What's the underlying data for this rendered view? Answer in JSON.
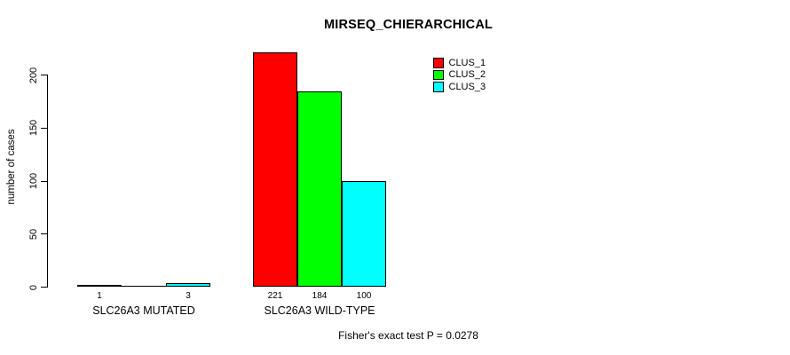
{
  "header": {
    "title": "MIRSEQ_CHIERARCHICAL"
  },
  "footer": {
    "caption": "Fisher's exact test P = 0.0278"
  },
  "colors": {
    "clus_1": "#ff0000",
    "clus_2": "#00ff00",
    "clus_3": "#00ffff",
    "bar_border": "#000000",
    "text": "#000000",
    "background": "#ffffff"
  },
  "chart_data": {
    "type": "bar",
    "title": "MIRSEQ_CHIERARCHICAL",
    "xlabel": "",
    "ylabel": "number of cases",
    "ylim": [
      0,
      225
    ],
    "yticks": [
      "0",
      "50",
      "100",
      "150",
      "200"
    ],
    "ytick_values": [
      0,
      50,
      100,
      150,
      200
    ],
    "grid": false,
    "legend_position": "top-right",
    "legend_box": false,
    "categories": [
      "SLC26A3 MUTATED",
      "SLC26A3 WILD-TYPE"
    ],
    "series": [
      {
        "name": "CLUS_1",
        "color": "#ff0000",
        "values": [
          1,
          221
        ]
      },
      {
        "name": "CLUS_2",
        "color": "#00ff00",
        "values": [
          0,
          184
        ]
      },
      {
        "name": "CLUS_3",
        "color": "#00ffff",
        "values": [
          3,
          100
        ]
      }
    ],
    "bar_value_labels": [
      [
        "1",
        "",
        "3"
      ],
      [
        "221",
        "184",
        "100"
      ]
    ],
    "annotation": "Fisher's exact test P = 0.0278"
  }
}
